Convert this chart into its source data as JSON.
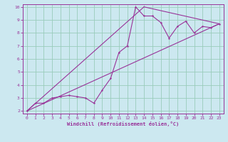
{
  "title": "",
  "xlabel": "Windchill (Refroidissement éolien,°C)",
  "bg_color": "#cce8f0",
  "line_color": "#993399",
  "grid_color": "#99ccbb",
  "xlim": [
    -0.5,
    23.5
  ],
  "ylim": [
    1.8,
    10.2
  ],
  "xticks": [
    0,
    1,
    2,
    3,
    4,
    5,
    6,
    7,
    8,
    9,
    10,
    11,
    12,
    13,
    14,
    15,
    16,
    17,
    18,
    19,
    20,
    21,
    22,
    23
  ],
  "yticks": [
    2,
    3,
    4,
    5,
    6,
    7,
    8,
    9,
    10
  ],
  "scatter_x": [
    0,
    1,
    2,
    3,
    4,
    5,
    6,
    7,
    8,
    9,
    10,
    11,
    12,
    13,
    14,
    15,
    16,
    17,
    18,
    19,
    20,
    21,
    22,
    23
  ],
  "scatter_y": [
    2.0,
    2.6,
    2.6,
    3.0,
    3.1,
    3.2,
    3.1,
    3.0,
    2.6,
    3.6,
    4.5,
    6.5,
    7.0,
    10.0,
    9.3,
    9.3,
    8.8,
    7.6,
    8.5,
    8.9,
    8.0,
    8.5,
    8.4,
    8.7
  ],
  "line1_x": [
    0,
    23
  ],
  "line1_y": [
    2.0,
    8.7
  ],
  "line2_x": [
    0,
    14
  ],
  "line2_y": [
    2.0,
    10.0
  ],
  "line3_x": [
    14,
    23
  ],
  "line3_y": [
    10.0,
    8.7
  ],
  "tick_fontsize": 4.5,
  "xlabel_fontsize": 5.0,
  "marker_size": 3
}
